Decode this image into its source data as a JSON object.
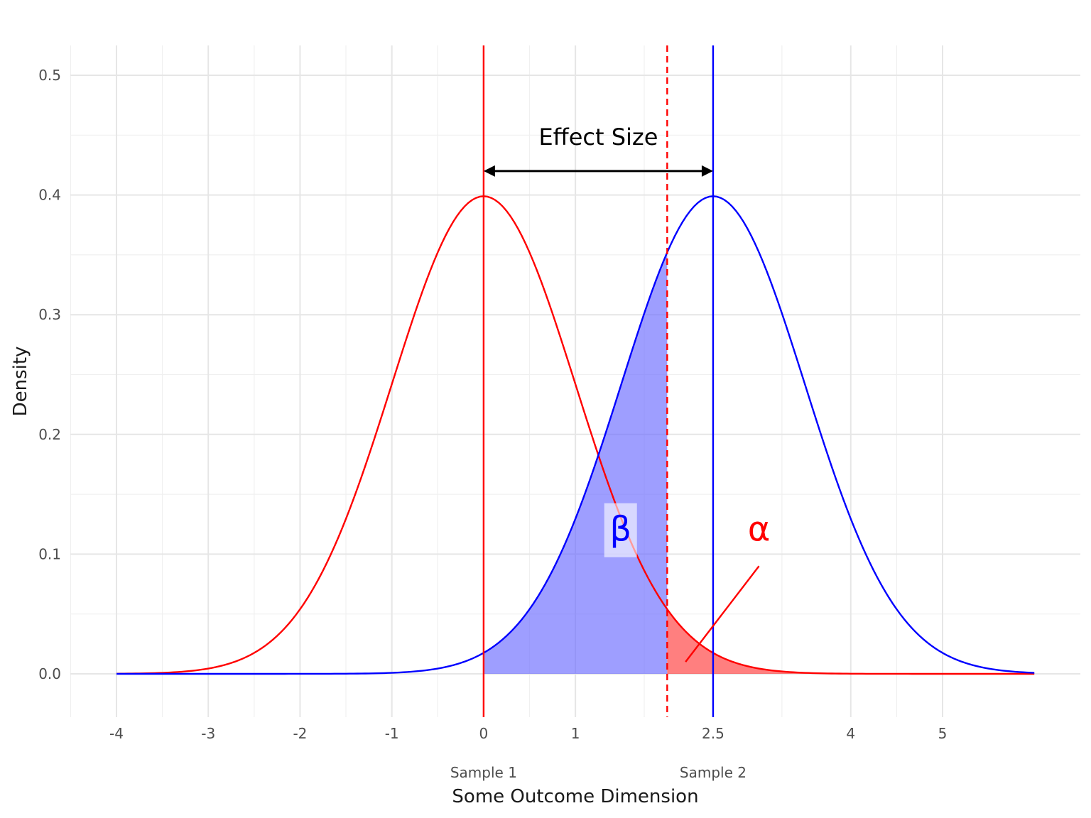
{
  "chart_data": {
    "type": "line",
    "xlabel": "Some Outcome Dimension",
    "ylabel": "Density",
    "xlim": [
      -4.5,
      6.5
    ],
    "ylim": [
      -0.035,
      0.525
    ],
    "x_ticks": [
      -4,
      -3,
      -2,
      -1,
      0,
      1,
      2.5,
      4,
      5
    ],
    "x_tick_labels": [
      "-4",
      "-3",
      "-2",
      "-1",
      "0",
      "1",
      "2.5",
      "4",
      "5"
    ],
    "y_ticks": [
      0.0,
      0.1,
      0.2,
      0.3,
      0.4,
      0.5
    ],
    "y_tick_labels": [
      "0.0",
      "0.1",
      "0.2",
      "0.3",
      "0.4",
      "0.5"
    ],
    "series": [
      {
        "mean": 0,
        "sd": 1,
        "x_range": [
          -4,
          6
        ],
        "color": "#ff0000"
      },
      {
        "mean": 2.5,
        "sd": 1,
        "x_range": [
          -4,
          6
        ],
        "color": "#0000ff"
      }
    ],
    "sample_labels": [
      {
        "x": 0,
        "text": "Sample 1"
      },
      {
        "x": 2.5,
        "text": "Sample 2"
      }
    ],
    "vertical_lines": [
      {
        "x": 0,
        "color": "#ff0000",
        "style": "solid"
      },
      {
        "x": 2.5,
        "color": "#0000ff",
        "style": "solid"
      },
      {
        "x": 2.0,
        "color": "#ff0000",
        "style": "dashed"
      }
    ],
    "critical_value": 2.0,
    "beta_region": {
      "from": 0,
      "to": 2.0,
      "color": "#6a6aff"
    },
    "alpha_region": {
      "from": 2.0,
      "to": 6,
      "color": "#ff3a3a"
    },
    "effect_size": {
      "from": 0,
      "to": 2.5,
      "y": 0.42,
      "label": "Effect Size"
    },
    "beta_label": {
      "text": "β",
      "x": 1.5,
      "y": 0.12,
      "color": "#0000ff"
    },
    "alpha_label": {
      "text": "α",
      "x": 3.0,
      "y": 0.12,
      "color": "#ff0000"
    },
    "alpha_pointer": {
      "from": [
        3.0,
        0.09
      ],
      "to": [
        2.2,
        0.01
      ]
    },
    "grid": true,
    "legend": "none"
  }
}
